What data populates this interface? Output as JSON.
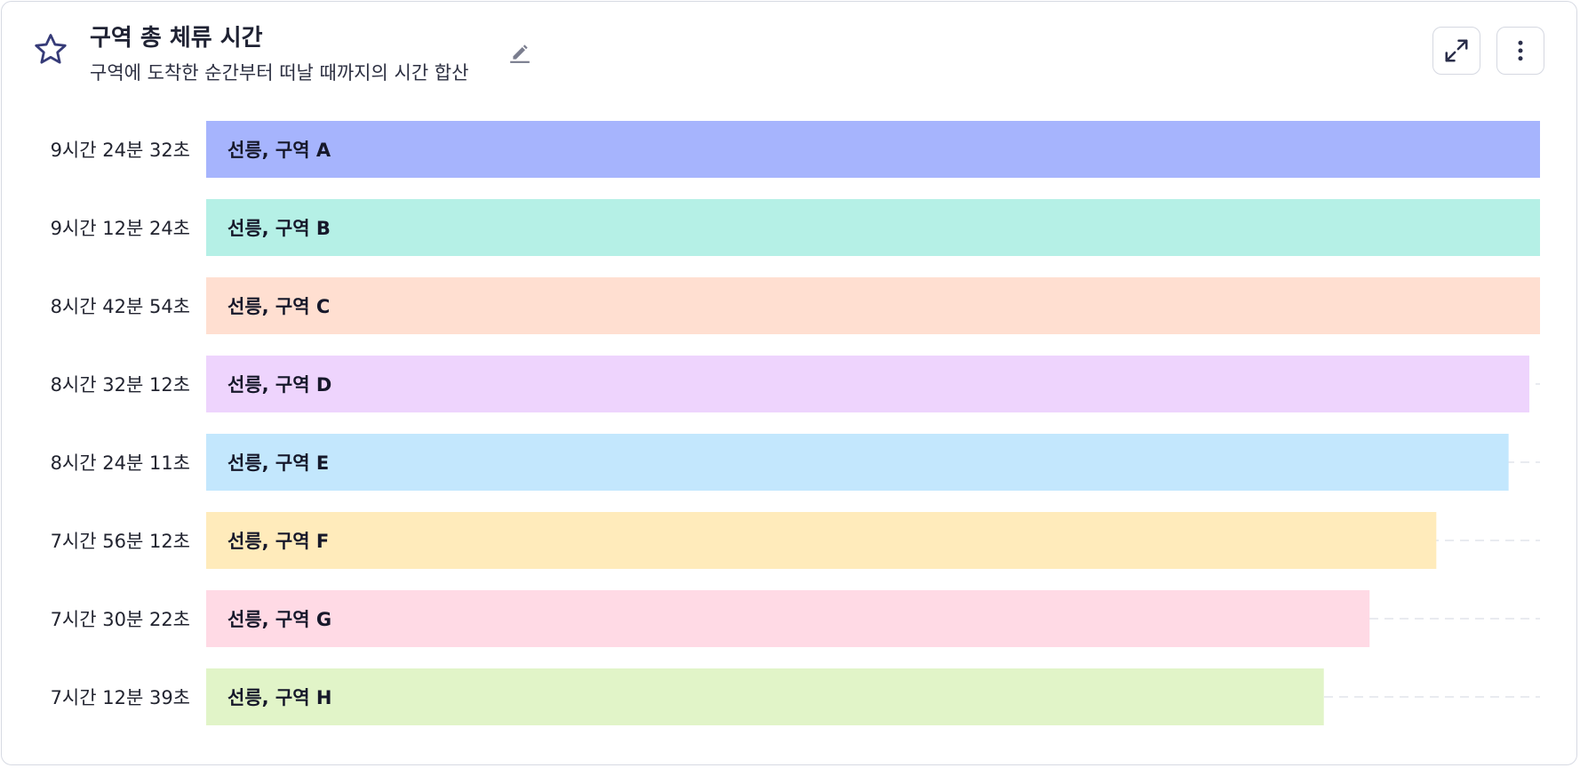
{
  "header": {
    "title": "구역 총 체류 시간",
    "subtitle": "구역에 도착한 순간부터 떠날 때까지의 시간 합산"
  },
  "icons": {
    "favorite": "star-icon",
    "edit": "pencil-icon",
    "expand": "expand-icon",
    "menu": "more-vertical-icon"
  },
  "chart_data": {
    "type": "bar",
    "orientation": "horizontal",
    "unit": "seconds",
    "xlim": [
      0,
      36000
    ],
    "grid": "dashed horizontal guide per row",
    "categories": [
      "선릉, 구역 A",
      "선릉, 구역 B",
      "선릉, 구역 C",
      "선릉, 구역 D",
      "선릉, 구역 E",
      "선릉, 구역 F",
      "선릉, 구역 G",
      "선릉, 구역 H"
    ],
    "tick_labels": [
      "9시간 24분 32초",
      "9시간 12분 24초",
      "8시간 42분 54초",
      "8시간 32분 12초",
      "8시간 24분 11초",
      "7시간 56분 12초",
      "7시간 30분 22초",
      "7시간 12분 39초"
    ],
    "values": [
      33872,
      33144,
      31374,
      30732,
      30251,
      28572,
      27022,
      25959
    ],
    "colors": [
      "#a6b4fd",
      "#b5f0e6",
      "#ffdfd1",
      "#eed4fd",
      "#c3e7fd",
      "#ffebbb",
      "#ffdae5",
      "#e1f4c8"
    ]
  }
}
